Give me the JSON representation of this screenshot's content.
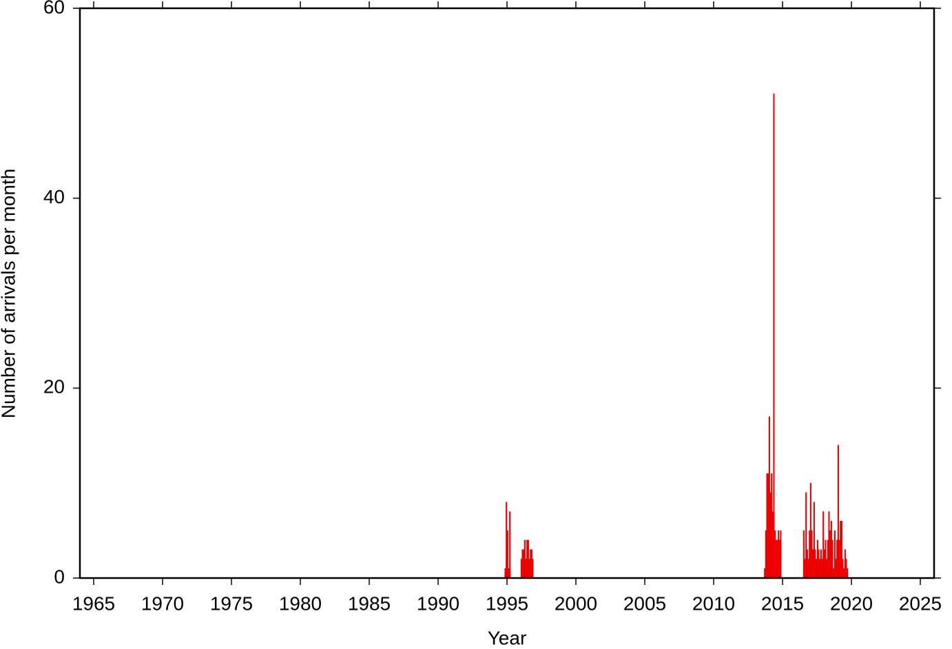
{
  "chart_data": {
    "type": "bar",
    "xlabel": "Year",
    "ylabel": "Number of arrivals per month",
    "color": "#ff0000",
    "bar_width": 0.0833,
    "x": [
      1994.83,
      1994.92,
      1995.0,
      1995.08,
      1995.17,
      1996.0,
      1996.08,
      1996.17,
      1996.25,
      1996.33,
      1996.42,
      1996.5,
      1996.58,
      1996.67,
      1996.75,
      1996.83,
      2013.67,
      2013.75,
      2013.83,
      2013.92,
      2014.0,
      2014.08,
      2014.17,
      2014.25,
      2014.33,
      2014.42,
      2014.5,
      2014.58,
      2014.67,
      2014.75,
      2014.83,
      2016.5,
      2016.58,
      2016.67,
      2016.75,
      2016.83,
      2016.92,
      2017.0,
      2017.08,
      2017.17,
      2017.25,
      2017.33,
      2017.42,
      2017.5,
      2017.58,
      2017.67,
      2017.75,
      2017.83,
      2017.92,
      2018.0,
      2018.08,
      2018.17,
      2018.25,
      2018.33,
      2018.42,
      2018.5,
      2018.58,
      2018.67,
      2018.75,
      2018.83,
      2018.92,
      2019.0,
      2019.08,
      2019.17,
      2019.25,
      2019.33,
      2019.42,
      2019.5,
      2019.58,
      2019.67
    ],
    "values": [
      1,
      8,
      5,
      1,
      7,
      2,
      3,
      3,
      4,
      2,
      4,
      4,
      2,
      3,
      3,
      2,
      1,
      5,
      11,
      11,
      17,
      9,
      11,
      7,
      51,
      5,
      4,
      4,
      5,
      4,
      5,
      5,
      2,
      9,
      3,
      2,
      5,
      10,
      5,
      3,
      8,
      3,
      2,
      4,
      3,
      2,
      3,
      2,
      7,
      3,
      4,
      2,
      4,
      7,
      5,
      6,
      4,
      1,
      5,
      2,
      4,
      14,
      4,
      6,
      6,
      2,
      1,
      3,
      2,
      1
    ],
    "xlim": [
      1964,
      2026
    ],
    "xticks": [
      1965,
      1970,
      1975,
      1980,
      1985,
      1990,
      1995,
      2000,
      2005,
      2010,
      2015,
      2020,
      2025
    ],
    "ylim": [
      0,
      60
    ],
    "yticks": [
      0,
      20,
      40,
      60
    ]
  }
}
